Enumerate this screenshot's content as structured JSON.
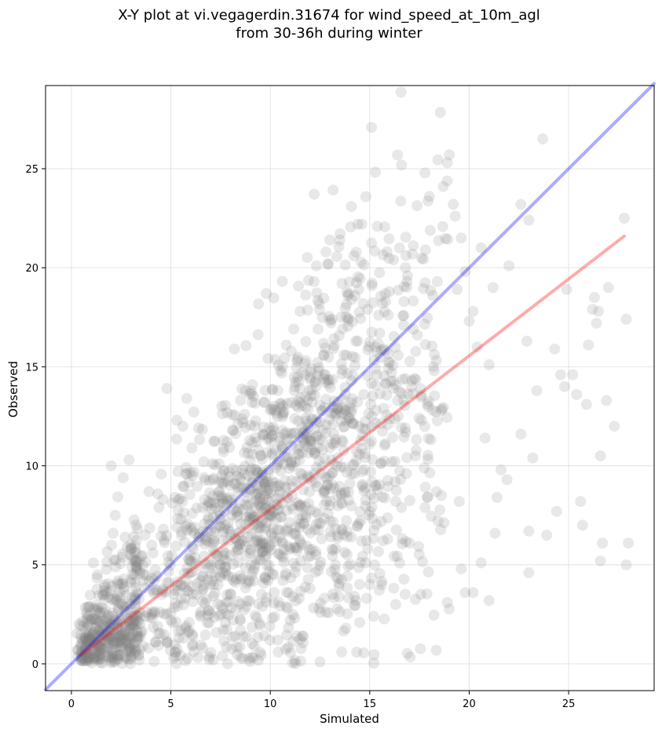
{
  "chart_data": {
    "type": "scatter",
    "title_lines": [
      "X-Y plot at vi.vegagerdin.31674 for wind_speed_at_10m_agl",
      "from 30-36h during winter"
    ],
    "xlabel": "Simulated",
    "ylabel": "Observed",
    "xlim": [
      -1.3,
      29.3
    ],
    "ylim": [
      -1.35,
      29.2
    ],
    "xticks": [
      0,
      5,
      10,
      15,
      20,
      25
    ],
    "yticks": [
      0,
      5,
      10,
      15,
      20,
      25
    ],
    "grid": true,
    "point_color": "#808080",
    "point_count_approx": 2000,
    "lines": [
      {
        "role": "identity",
        "color": "#0000ff",
        "x": [
          -1.3,
          29.3
        ],
        "y": [
          -1.3,
          29.3
        ]
      },
      {
        "role": "fit",
        "color": "#ff0000",
        "x": [
          0.5,
          27.8
        ],
        "y": [
          0.45,
          21.6
        ]
      }
    ],
    "series": [
      {
        "values": [
          [
            0.5,
            0.6
          ],
          [
            0.6,
            0.3
          ],
          [
            0.7,
            0.8
          ],
          [
            0.8,
            0.2
          ],
          [
            0.9,
            1.2
          ],
          [
            1.0,
            0.5
          ],
          [
            0.6,
            1.9
          ],
          [
            0.8,
            2.3
          ],
          [
            1.1,
            1.6
          ],
          [
            1.2,
            0.2
          ],
          [
            1.3,
            2.7
          ],
          [
            1.4,
            1.1
          ],
          [
            1.5,
            0.7
          ],
          [
            1.6,
            3.5
          ],
          [
            1.1,
            5.1
          ],
          [
            1.3,
            4.5
          ],
          [
            1.8,
            1.9
          ],
          [
            2.0,
            0.3
          ],
          [
            2.1,
            2.4
          ],
          [
            2.3,
            1.3
          ],
          [
            2.4,
            4.0
          ],
          [
            2.6,
            0.8
          ],
          [
            2.8,
            2.9
          ],
          [
            2.9,
            1.9
          ],
          [
            3.0,
            0.4
          ],
          [
            3.2,
            3.4
          ],
          [
            3.3,
            4.8
          ],
          [
            3.5,
            1.6
          ],
          [
            3.6,
            0.9
          ],
          [
            3.8,
            2.6
          ],
          [
            2.0,
            10.0
          ],
          [
            2.2,
            7.5
          ],
          [
            2.6,
            9.4
          ],
          [
            2.9,
            10.3
          ],
          [
            2.1,
            6.6
          ],
          [
            2.7,
            6.4
          ],
          [
            3.9,
            8.7
          ],
          [
            3.7,
            6.5
          ],
          [
            4.1,
            5.6
          ],
          [
            4.4,
            7.9
          ],
          [
            4.6,
            8.3
          ],
          [
            4.9,
            4.1
          ],
          [
            5.0,
            2.2
          ],
          [
            5.2,
            0.6
          ],
          [
            5.3,
            6.9
          ],
          [
            5.4,
            1.3
          ],
          [
            5.6,
            12.0
          ],
          [
            5.8,
            13.4
          ],
          [
            6.1,
            9.5
          ],
          [
            6.4,
            11.9
          ],
          [
            4.8,
            13.9
          ],
          [
            5.3,
            12.3
          ],
          [
            6.0,
            4.6
          ],
          [
            6.3,
            3.5
          ],
          [
            6.6,
            0.8
          ],
          [
            6.7,
            8.3
          ],
          [
            6.9,
            2.7
          ],
          [
            7.1,
            10.1
          ],
          [
            7.3,
            5.5
          ],
          [
            7.5,
            7.3
          ],
          [
            7.6,
            0.4
          ],
          [
            7.8,
            3.1
          ],
          [
            8.0,
            9.0
          ],
          [
            8.1,
            11.8
          ],
          [
            8.2,
            15.9
          ],
          [
            8.4,
            6.6
          ],
          [
            8.5,
            1.7
          ],
          [
            8.7,
            12.6
          ],
          [
            8.9,
            4.2
          ],
          [
            9.0,
            8.1
          ],
          [
            9.1,
            14.1
          ],
          [
            9.2,
            0.9
          ],
          [
            9.4,
            10.8
          ],
          [
            9.5,
            5.8
          ],
          [
            9.6,
            2.9
          ],
          [
            9.7,
            13.2
          ],
          [
            9.8,
            18.7
          ],
          [
            10.0,
            7.4
          ],
          [
            10.1,
            11.5
          ],
          [
            10.2,
            3.6
          ],
          [
            10.3,
            9.9
          ],
          [
            10.4,
            0.6
          ],
          [
            10.5,
            14.8
          ],
          [
            10.6,
            6.1
          ],
          [
            10.7,
            12.7
          ],
          [
            10.8,
            16.1
          ],
          [
            11.0,
            2.2
          ],
          [
            11.1,
            8.5
          ],
          [
            11.2,
            13.8
          ],
          [
            11.3,
            4.9
          ],
          [
            11.4,
            10.6
          ],
          [
            11.5,
            17.8
          ],
          [
            11.6,
            1.4
          ],
          [
            11.7,
            7.1
          ],
          [
            11.8,
            15.3
          ],
          [
            11.9,
            12.1
          ],
          [
            12.0,
            3.8
          ],
          [
            12.1,
            9.2
          ],
          [
            12.2,
            19.3
          ],
          [
            12.3,
            5.5
          ],
          [
            12.4,
            16.9
          ],
          [
            12.5,
            0.1
          ],
          [
            12.6,
            11.3
          ],
          [
            12.7,
            14.4
          ],
          [
            12.8,
            2.6
          ],
          [
            12.9,
            20.2
          ],
          [
            13.0,
            8.0
          ],
          [
            13.1,
            17.4
          ],
          [
            13.2,
            13.0
          ],
          [
            13.3,
            4.4
          ],
          [
            13.4,
            10.4
          ],
          [
            13.5,
            21.4
          ],
          [
            13.6,
            6.8
          ],
          [
            13.7,
            15.6
          ],
          [
            13.8,
            1.8
          ],
          [
            13.9,
            18.6
          ],
          [
            14.0,
            12.4
          ],
          [
            14.1,
            9.6
          ],
          [
            14.2,
            20.6
          ],
          [
            14.3,
            3.2
          ],
          [
            14.4,
            16.3
          ],
          [
            14.5,
            7.7
          ],
          [
            14.6,
            22.2
          ],
          [
            14.7,
            13.6
          ],
          [
            14.8,
            5.1
          ],
          [
            14.9,
            17.9
          ],
          [
            15.0,
            11.1
          ],
          [
            15.1,
            19.1
          ],
          [
            15.2,
            2.4
          ],
          [
            15.3,
            14.9
          ],
          [
            15.4,
            8.8
          ],
          [
            15.5,
            16.7
          ],
          [
            15.6,
            4.0
          ],
          [
            15.7,
            12.9
          ],
          [
            15.8,
            18.3
          ],
          [
            15.9,
            6.3
          ],
          [
            16.0,
            15.2
          ],
          [
            16.1,
            10.2
          ],
          [
            16.2,
            20.4
          ],
          [
            16.3,
            3.0
          ],
          [
            16.4,
            13.3
          ],
          [
            16.5,
            21.0
          ],
          [
            16.6,
            7.9
          ],
          [
            16.7,
            17.1
          ],
          [
            16.8,
            11.7
          ],
          [
            16.9,
            19.6
          ],
          [
            17.0,
            6.1
          ],
          [
            17.1,
            14.0
          ],
          [
            17.3,
            10.5
          ],
          [
            17.4,
            16.6
          ],
          [
            17.6,
            12.3
          ],
          [
            17.8,
            20.9
          ],
          [
            17.9,
            8.4
          ],
          [
            18.0,
            23.6
          ],
          [
            18.2,
            15.0
          ],
          [
            18.4,
            19.3
          ],
          [
            18.6,
            12.8
          ],
          [
            18.7,
            24.1
          ],
          [
            18.9,
            25.3
          ],
          [
            19.0,
            25.7
          ],
          [
            19.2,
            23.2
          ],
          [
            19.3,
            22.6
          ],
          [
            19.4,
            18.9
          ],
          [
            19.6,
            21.5
          ],
          [
            19.8,
            19.8
          ],
          [
            20.0,
            17.3
          ],
          [
            20.2,
            17.8
          ],
          [
            20.4,
            16.0
          ],
          [
            20.6,
            21.0
          ],
          [
            20.8,
            11.4
          ],
          [
            21.0,
            15.1
          ],
          [
            21.2,
            19.0
          ],
          [
            21.4,
            8.4
          ],
          [
            21.6,
            9.8
          ],
          [
            21.9,
            9.3
          ],
          [
            22.0,
            20.1
          ],
          [
            22.6,
            11.6
          ],
          [
            22.6,
            23.2
          ],
          [
            22.9,
            16.3
          ],
          [
            23.0,
            22.4
          ],
          [
            23.2,
            10.4
          ],
          [
            23.4,
            13.8
          ],
          [
            23.7,
            26.5
          ],
          [
            23.9,
            6.5
          ],
          [
            24.3,
            15.9
          ],
          [
            24.4,
            7.7
          ],
          [
            24.6,
            14.6
          ],
          [
            24.8,
            14.0
          ],
          [
            24.9,
            18.9
          ],
          [
            25.2,
            14.6
          ],
          [
            25.4,
            13.6
          ],
          [
            25.6,
            8.2
          ],
          [
            25.7,
            7.0
          ],
          [
            25.9,
            13.1
          ],
          [
            26.0,
            16.1
          ],
          [
            26.2,
            17.9
          ],
          [
            26.3,
            18.5
          ],
          [
            26.4,
            17.2
          ],
          [
            26.5,
            17.8
          ],
          [
            26.6,
            10.5
          ],
          [
            26.7,
            6.1
          ],
          [
            26.6,
            5.2
          ],
          [
            26.9,
            13.3
          ],
          [
            27.0,
            19.0
          ],
          [
            27.3,
            12.0
          ],
          [
            27.8,
            22.5
          ],
          [
            27.9,
            17.4
          ],
          [
            28.0,
            6.1
          ],
          [
            27.9,
            5.0
          ],
          [
            19.6,
            4.8
          ],
          [
            19.8,
            3.6
          ],
          [
            20.2,
            3.6
          ],
          [
            18.9,
            3.1
          ],
          [
            21.0,
            3.2
          ],
          [
            20.6,
            5.1
          ],
          [
            23.0,
            4.6
          ],
          [
            21.3,
            6.6
          ],
          [
            23.0,
            6.7
          ],
          [
            19.5,
            8.2
          ],
          [
            18.6,
            8.5
          ]
        ]
      }
    ]
  }
}
